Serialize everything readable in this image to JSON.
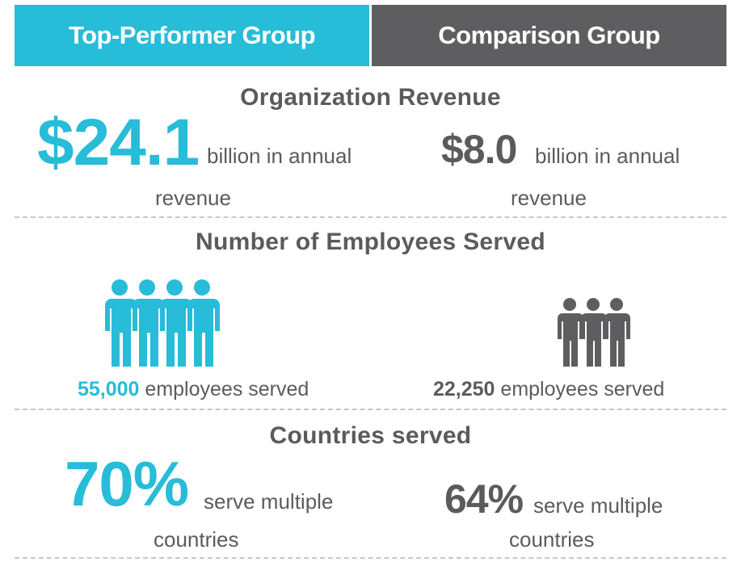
{
  "header": {
    "top_tab": "Top-Performer Group",
    "comparison_tab": "Comparison Group"
  },
  "colors": {
    "top_accent": "#27bcd8",
    "comparison_accent": "#5e5e60",
    "text": "#5b5b5d"
  },
  "revenue": {
    "title": "Organization Revenue",
    "top": {
      "value": "$24.1",
      "text_line1": "billion in annual",
      "text_line2": "revenue"
    },
    "comparison": {
      "value": "$8.0",
      "text_line1": "billion in annual",
      "text_line2": "revenue"
    }
  },
  "employees": {
    "title": "Number of Employees Served",
    "top": {
      "value": "55,000",
      "text": "employees served",
      "icon": "people-group-icon"
    },
    "comparison": {
      "value": "22,250",
      "text": "employees served",
      "icon": "people-group-icon"
    }
  },
  "countries": {
    "title": "Countries served",
    "top": {
      "value": "70%",
      "text_line1": "serve multiple",
      "text_line2": "countries"
    },
    "comparison": {
      "value": "64%",
      "text_line1": "serve multiple",
      "text_line2": "countries"
    }
  }
}
